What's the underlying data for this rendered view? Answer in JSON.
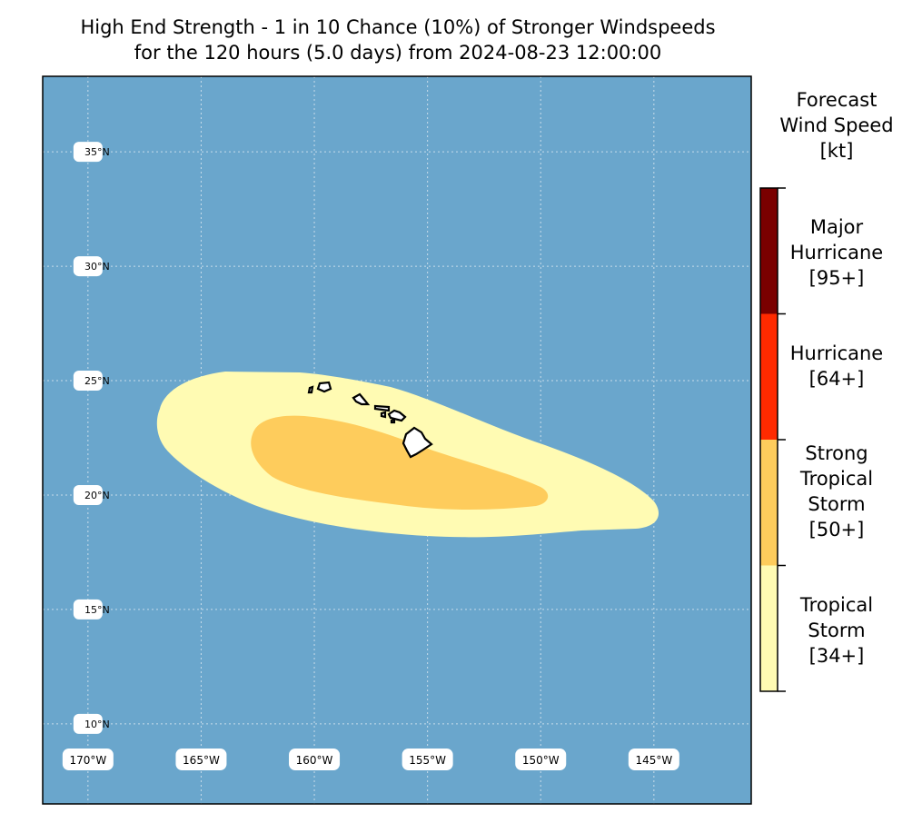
{
  "title": {
    "line1": "High End Strength - 1 in 10 Chance (10%) of Stronger Windspeeds",
    "line2": "for the 120 hours (5.0 days) from 2024-08-23 12:00:00"
  },
  "map": {
    "ocean_color": "#6aa6cc",
    "land_color": "#ffffff",
    "coast_color": "#000000",
    "grid_color": "#c8dcea",
    "lat_labels": [
      "35°N",
      "30°N",
      "25°N",
      "20°N",
      "15°N",
      "10°N"
    ],
    "lon_labels": [
      "170°W",
      "165°W",
      "160°W",
      "155°W",
      "150°W",
      "145°W"
    ],
    "lat_values": [
      35,
      30,
      25,
      20,
      15,
      10
    ],
    "lon_values": [
      -170,
      -165,
      -160,
      -155,
      -150,
      -145
    ],
    "extent": {
      "lon": [
        -172,
        -140.7
      ],
      "lat": [
        6.5,
        38.3
      ]
    },
    "wind_zones": [
      {
        "category": "Tropical Storm [34+]",
        "color": "#fffbb3"
      },
      {
        "category": "Strong Tropical Storm [50+]",
        "color": "#fecc5c"
      }
    ],
    "islands": [
      "Kauai",
      "Oahu",
      "Molokai",
      "Maui",
      "Lanai",
      "Kahoolawe",
      "Hawaii"
    ]
  },
  "colorbar": {
    "title_lines": [
      "Forecast",
      "Wind Speed",
      "[kt]"
    ],
    "segments": [
      {
        "lines": [
          "Major",
          "Hurricane",
          "[95+]"
        ],
        "color": "#7a0000",
        "threshold": 95
      },
      {
        "lines": [
          "Hurricane",
          "[64+]"
        ],
        "color": "#ff2a00",
        "threshold": 64
      },
      {
        "lines": [
          "Strong",
          "Tropical",
          "Storm",
          "[50+]"
        ],
        "color": "#fecc5c",
        "threshold": 50
      },
      {
        "lines": [
          "Tropical",
          "Storm",
          "[34+]"
        ],
        "color": "#fffbb3",
        "threshold": 34
      }
    ]
  }
}
